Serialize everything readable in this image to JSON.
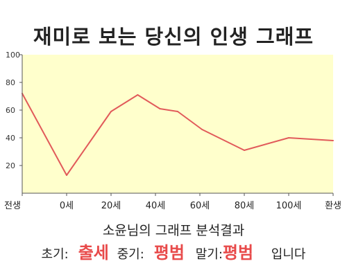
{
  "title": "재미로 보는 당신의 인생 그래프",
  "summary": {
    "text": "소윤님의 그래프 분석결과"
  },
  "result": {
    "early_label": "초기:",
    "early_value": "출세",
    "middle_label": "중기:",
    "middle_value": "평범",
    "late_label": "말기:",
    "late_value": "평범",
    "suffix": "입니다"
  },
  "colors": {
    "line": "#e15a5a",
    "area_fill": "#ffffcc",
    "highlight_text": "#e84a4a"
  },
  "chart_data": {
    "type": "area",
    "x_tick_labels": [
      "전생",
      "0세",
      "20세",
      "40세",
      "60세",
      "80세",
      "100세",
      "환생"
    ],
    "y_ticks": [
      20,
      40,
      60,
      80,
      100
    ],
    "ylim": [
      0,
      100
    ],
    "grid": false,
    "points": [
      {
        "x": -20,
        "y": 72
      },
      {
        "x": 0,
        "y": 13
      },
      {
        "x": 20,
        "y": 59
      },
      {
        "x": 32,
        "y": 71
      },
      {
        "x": 42,
        "y": 61
      },
      {
        "x": 50,
        "y": 59
      },
      {
        "x": 61,
        "y": 46
      },
      {
        "x": 80,
        "y": 31
      },
      {
        "x": 100,
        "y": 40
      },
      {
        "x": 120,
        "y": 38
      }
    ],
    "x_tick_values": [
      -20,
      0,
      20,
      40,
      60,
      80,
      100,
      120
    ]
  }
}
